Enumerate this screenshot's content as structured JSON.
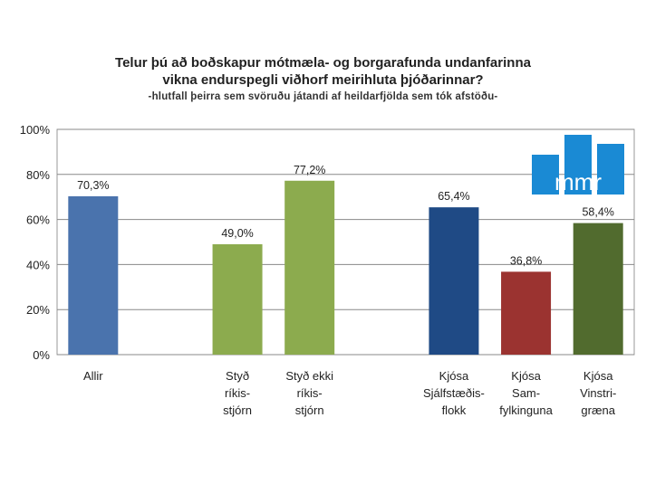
{
  "title_line1": "Telur þú að boðskapur mótmæla- og borgarafunda undanfarinna",
  "title_line2": "vikna endurspegli viðhorf meirihluta þjóðarinnar?",
  "subtitle": "-hlutfall þeirra sem svöruðu játandi af heildarfjölda sem tók afstöðu-",
  "logo_text": "mmr",
  "colors": {
    "allir": "#4a73ad",
    "gov_green": "#8cab4e",
    "sjalfstaedis": "#1f4a85",
    "samfylking": "#9b3330",
    "vinstrigraen": "#516b2e",
    "logo_blue": "#1a8ad4",
    "grid": "#888888"
  },
  "chart_data": {
    "type": "bar",
    "title": "Telur þú að boðskapur mótmæla- og borgarafunda undanfarinna vikna endurspegli viðhorf meirihluta þjóðarinnar?",
    "subtitle": "-hlutfall þeirra sem svöruðu játandi af heildarfjölda sem tók afstöðu-",
    "ylim": [
      0,
      100
    ],
    "yticks": [
      "0%",
      "20%",
      "40%",
      "60%",
      "80%",
      "100%"
    ],
    "grid": true,
    "categories": [
      [
        "Allir"
      ],
      [],
      [
        "Styð",
        "ríkis-",
        "stjórn"
      ],
      [
        "Styð ekki",
        "ríkis-",
        "stjórn"
      ],
      [],
      [
        "Kjósa",
        "Sjálfstæðis-",
        "flokk"
      ],
      [
        "Kjósa",
        "Sam-",
        "fylkinguna"
      ],
      [
        "Kjósa",
        "Vinstri-",
        "græna"
      ]
    ],
    "values": [
      70.3,
      null,
      49.0,
      77.2,
      null,
      65.4,
      36.8,
      58.4
    ],
    "labels": [
      "70,3%",
      "",
      "49,0%",
      "77,2%",
      "",
      "65,4%",
      "36,8%",
      "58,4%"
    ],
    "bar_colors": [
      "allir",
      "",
      "gov_green",
      "gov_green",
      "",
      "sjalfstaedis",
      "samfylking",
      "vinstrigraen"
    ]
  }
}
